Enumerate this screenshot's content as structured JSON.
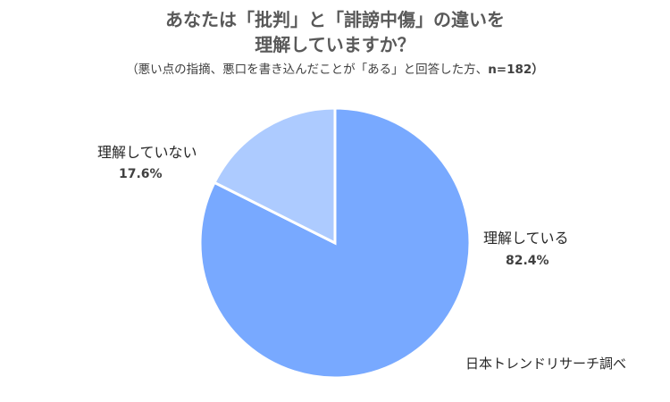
{
  "chart_data": {
    "type": "pie",
    "title_line1": "あなたは「批判」と「誹謗中傷」の違いを",
    "title_line2": "理解していますか？",
    "subtitle_text": "（悪い点の指摘、悪口を書き込んだことが「ある」と回答した方、",
    "subtitle_n": "n=182）",
    "categories": [
      "理解している",
      "理解していない"
    ],
    "values": [
      82.4,
      17.6
    ],
    "value_labels": [
      "82.4%",
      "17.6%"
    ],
    "colors": [
      "#78a9ff",
      "#adcbff"
    ],
    "legend": "none",
    "source": "日本トレンドリサーチ調べ"
  }
}
